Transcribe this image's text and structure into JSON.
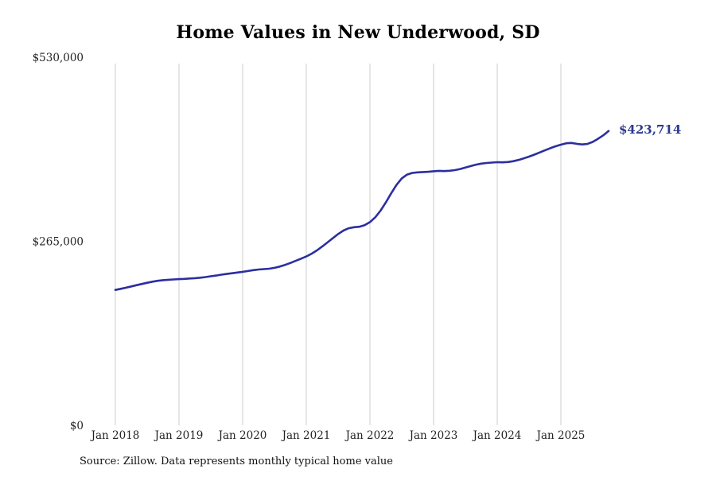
{
  "chart_data": {
    "type": "line",
    "title": "Home Values in New Underwood, SD",
    "source_note": "Source: Zillow. Data represents monthly typical home value",
    "line_color": "#2b2f9e",
    "grid_color": "#cccccc",
    "tick_text_color": "#222222",
    "annotation": {
      "label": "$423,714",
      "color": "#2b3990"
    },
    "y_axis": {
      "min": 0,
      "max": 530000,
      "ticks": [
        {
          "label": "$0",
          "value": 0
        },
        {
          "label": "$265,000",
          "value": 265000
        },
        {
          "label": "$530,000",
          "value": 530000
        }
      ]
    },
    "x_axis": {
      "tick_labels": [
        "Jan 2018",
        "Jan 2019",
        "Jan 2020",
        "Jan 2021",
        "Jan 2022",
        "Jan 2023",
        "Jan 2024",
        "Jan 2025"
      ]
    },
    "series": [
      {
        "name": "Monthly typical home value",
        "start_month": "Jan 2018",
        "values": [
          195000,
          196600,
          198200,
          200000,
          201800,
          203500,
          205300,
          206900,
          208100,
          209000,
          209600,
          210100,
          210500,
          210900,
          211400,
          211900,
          212600,
          213500,
          214600,
          215700,
          216900,
          218000,
          219000,
          220000,
          221000,
          222200,
          223500,
          224400,
          224900,
          225500,
          226800,
          228600,
          231000,
          233800,
          236800,
          239900,
          243100,
          247100,
          251800,
          257400,
          263400,
          269500,
          275400,
          280500,
          283800,
          285300,
          285900,
          288100,
          292600,
          299600,
          309100,
          321000,
          334000,
          346100,
          355500,
          361000,
          363500,
          364300,
          364700,
          365100,
          365900,
          366400,
          366100,
          366500,
          367500,
          369100,
          371100,
          373300,
          375300,
          376800,
          377700,
          378300,
          378900,
          378700,
          379100,
          380300,
          382100,
          384400,
          386900,
          389800,
          392900,
          396000,
          399000,
          401800,
          404100,
          406100,
          406600,
          405300,
          404400,
          405100,
          408100,
          412600,
          417600,
          423714
        ]
      }
    ]
  }
}
